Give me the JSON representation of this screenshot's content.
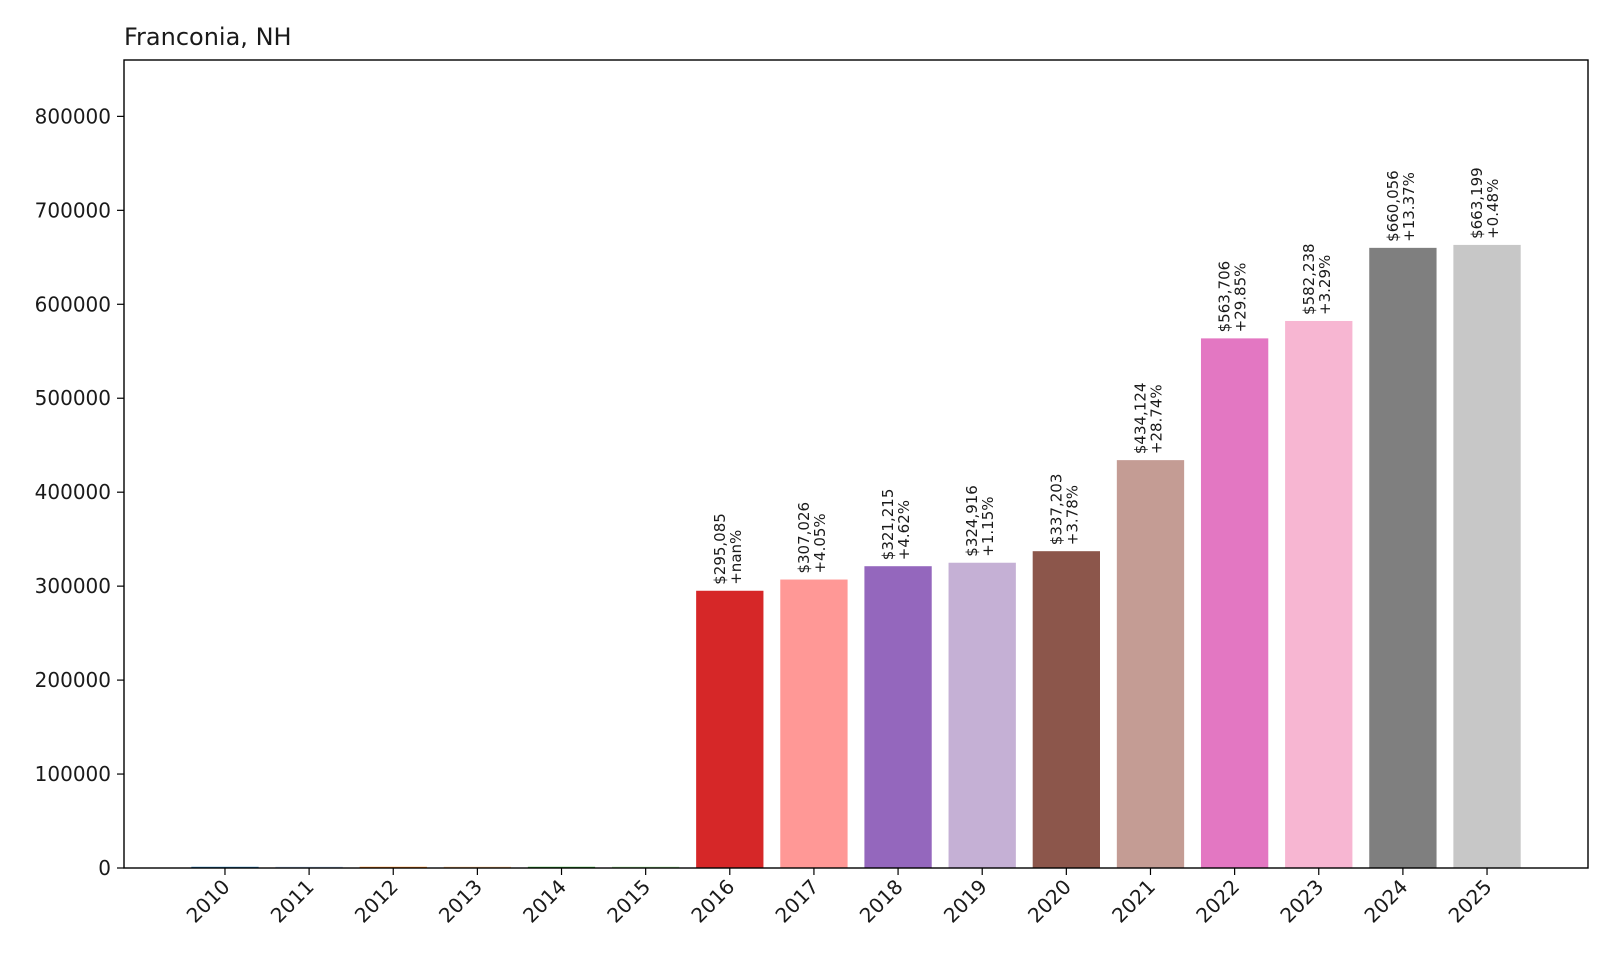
{
  "chart_data": {
    "type": "bar",
    "title": "Franconia, NH",
    "xlabel": "",
    "ylabel": "",
    "ylim": [
      0,
      860000
    ],
    "yticks": [
      0,
      100000,
      200000,
      300000,
      400000,
      500000,
      600000,
      700000,
      800000
    ],
    "categories": [
      "2010",
      "2011",
      "2012",
      "2013",
      "2014",
      "2015",
      "2016",
      "2017",
      "2018",
      "2019",
      "2020",
      "2021",
      "2022",
      "2023",
      "2024",
      "2025"
    ],
    "values": [
      0,
      0,
      0,
      0,
      0,
      0,
      295085,
      307026,
      321215,
      324916,
      337203,
      434124,
      563706,
      582238,
      660056,
      663199
    ],
    "value_labels": [
      "",
      "",
      "",
      "",
      "",
      "",
      "$295,085",
      "$307,026",
      "$321,215",
      "$324,916",
      "$337,203",
      "$434,124",
      "$563,706",
      "$582,238",
      "$660,056",
      "$663,199"
    ],
    "change_labels": [
      "",
      "",
      "",
      "",
      "",
      "",
      "+nan%",
      "+4.05%",
      "+4.62%",
      "+1.15%",
      "+3.78%",
      "+28.74%",
      "+29.85%",
      "+3.29%",
      "+13.37%",
      "+0.48%"
    ],
    "colors": [
      "#1f77b4",
      "#aec7e8",
      "#ff7f0e",
      "#ffbb78",
      "#2ca02c",
      "#98df8a",
      "#d62728",
      "#ff9896",
      "#9467bd",
      "#c5b0d5",
      "#8c564b",
      "#c49c94",
      "#e377c2",
      "#f7b6d2",
      "#7f7f7f",
      "#c7c7c7"
    ],
    "grid": false,
    "legend": "none"
  }
}
